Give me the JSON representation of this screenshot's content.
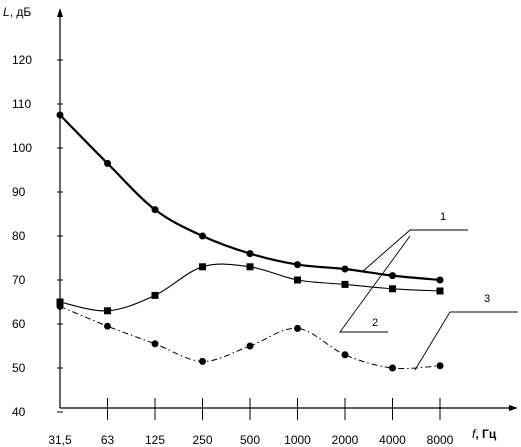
{
  "chart_data": {
    "type": "line",
    "ylabel_var": "L",
    "ylabel_unit": ", дБ",
    "xlabel_var": "f",
    "xlabel_unit": ", Гц",
    "y_ticks": [
      "120",
      "110",
      "100",
      "90",
      "80",
      "70",
      "60",
      "50",
      "40"
    ],
    "x_ticks": [
      "31,5",
      "63",
      "125",
      "250",
      "500",
      "1000",
      "2000",
      "4000",
      "8000"
    ],
    "ylim": [
      37.5,
      123
    ],
    "series": [
      {
        "name": "1",
        "style": "solid-thick",
        "marker": "circle",
        "values": [
          107.5,
          96.5,
          86,
          80,
          76,
          73.5,
          72.5,
          71,
          70
        ]
      },
      {
        "name": "2",
        "style": "solid-thin",
        "marker": "square",
        "values": [
          65,
          63,
          66.5,
          73,
          73,
          70,
          69,
          68,
          67.5
        ]
      },
      {
        "name": "3",
        "style": "dash-dot",
        "marker": "circle",
        "values": [
          64,
          59.5,
          55.5,
          51.5,
          55,
          59,
          53,
          50,
          50.5
        ]
      }
    ],
    "callouts": [
      "1",
      "2",
      "3"
    ],
    "grid": false,
    "legend": "none"
  }
}
